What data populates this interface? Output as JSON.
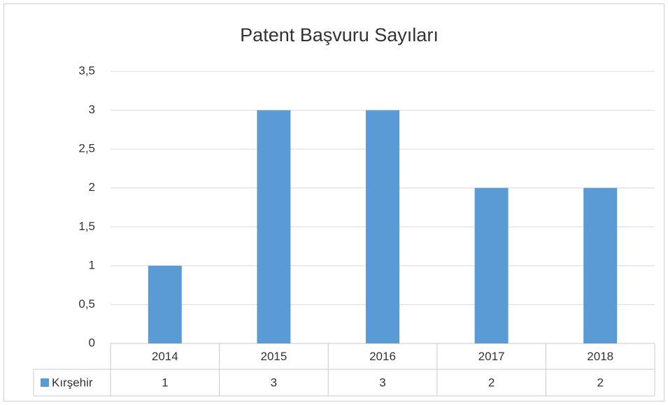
{
  "chart_data": {
    "type": "bar",
    "title": "Patent Başvuru Sayıları",
    "categories": [
      "2014",
      "2015",
      "2016",
      "2017",
      "2018"
    ],
    "series": [
      {
        "name": "Kırşehir",
        "color": "#5b9bd5",
        "values": [
          1,
          3,
          3,
          2,
          2
        ]
      }
    ],
    "ylim": [
      0,
      3.5
    ],
    "yticks": [
      0,
      {
        "value": 0.5,
        "label": "0,5"
      },
      1,
      {
        "value": 1.5,
        "label": "1,5"
      },
      2,
      {
        "value": 2.5,
        "label": "2,5"
      },
      3,
      {
        "value": 3.5,
        "label": "3,5"
      }
    ],
    "grid": true,
    "data_table": true
  }
}
